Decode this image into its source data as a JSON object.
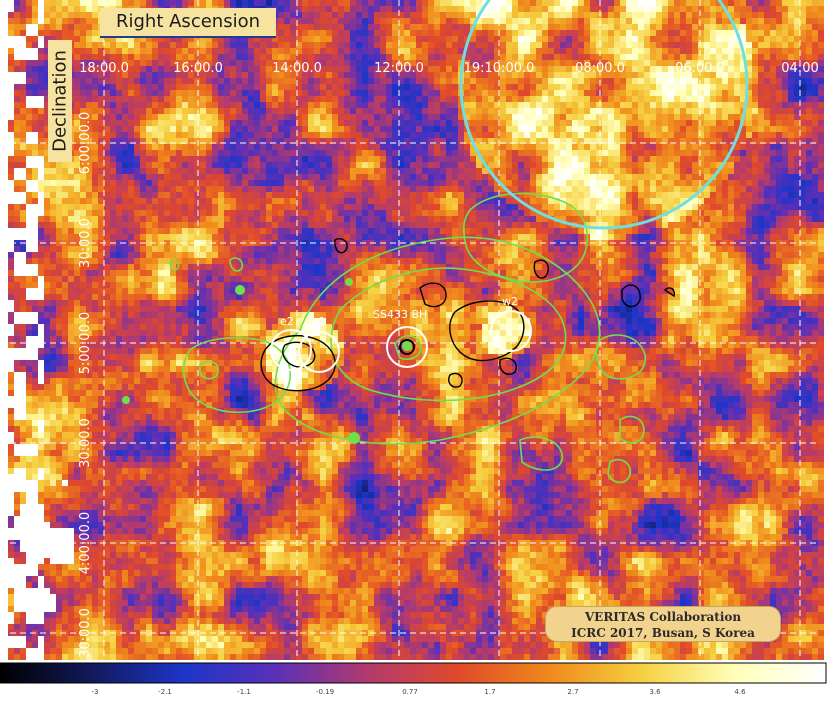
{
  "figure": {
    "ra_axis_title": "Right Ascension",
    "dec_axis_title": "Declination"
  },
  "ra_ticks": [
    "18:00.0",
    "16:00.0",
    "14:00.0",
    "12:00.0",
    "19:10:00.0",
    "08:00.0",
    "06:00.0",
    "04:00"
  ],
  "dec_ticks": [
    "6:00:00.0",
    "30:00.0",
    "5:00:00.0",
    "30:00.0",
    "4:00:00.0",
    "30:00.0"
  ],
  "sources": [
    {
      "name": "e2"
    },
    {
      "name": "e1"
    },
    {
      "name": "SS433 BH"
    },
    {
      "name": "w2"
    }
  ],
  "credit": {
    "line1": "VERITAS Collaboration",
    "line2": "ICRC 2017, Busan, S Korea"
  },
  "colorbar": {
    "tick_labels": [
      "-3",
      "-2.1",
      "-1.1",
      "-0.19",
      "0.77",
      "1.7",
      "2.7",
      "3.6",
      "4.6"
    ],
    "stops": [
      "#000000",
      "#121a5a",
      "#1d35c8",
      "#5a30b8",
      "#b23a6e",
      "#e04a2b",
      "#f08a1c",
      "#f6d040",
      "#ffffb8",
      "#ffffff"
    ]
  },
  "colors": {
    "grid": "#ffffff",
    "green_contours": "#6fe04b",
    "black_contours": "#000000",
    "source_circles": "#ffffff",
    "cyan_circle": "#6fe0e0"
  }
}
